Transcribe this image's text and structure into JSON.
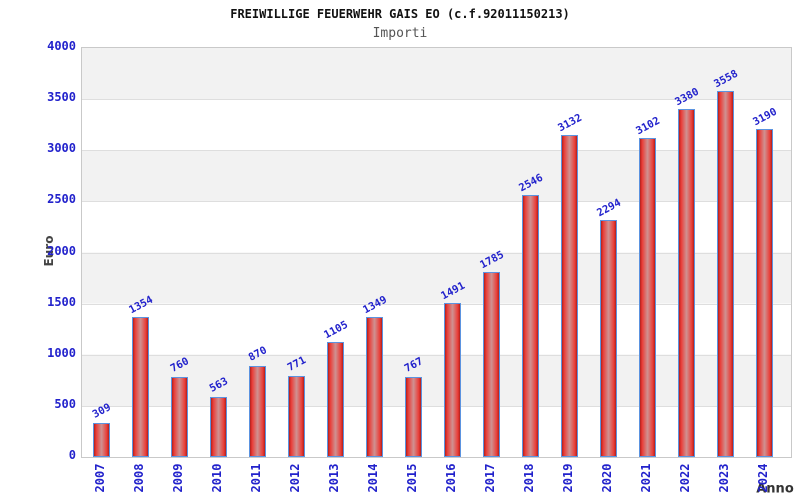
{
  "chart_data": {
    "type": "bar",
    "title": "FREIWILLIGE FEUERWEHR GAIS EO (c.f.92011150213)",
    "subtitle": "Importi",
    "xlabel": "Anno",
    "ylabel": "Euro",
    "categories": [
      "2007",
      "2008",
      "2009",
      "2010",
      "2011",
      "2012",
      "2013",
      "2014",
      "2015",
      "2016",
      "2017",
      "2018",
      "2019",
      "2020",
      "2021",
      "2022",
      "2023",
      "2024"
    ],
    "values": [
      309,
      1354,
      760,
      563,
      870,
      771,
      1105,
      1349,
      767,
      1491,
      1785,
      2546,
      3132,
      2294,
      3102,
      3380,
      3558,
      3190
    ],
    "ylim": [
      0,
      4000
    ],
    "ytick_step": 500,
    "grid": true,
    "legend": "none",
    "colors": {
      "bar_fill": "#ea3b36",
      "bar_fill_edge": "#b0201c",
      "bar_fill_center": "#cf9292",
      "bar_border": "#5b93e0",
      "tick_label": "#2222cc",
      "band_gray": "#f2f2f2",
      "band_white": "#ffffff",
      "gridline": "#dedede",
      "title_color": "#111111",
      "subtitle_color": "#555555",
      "axis_label_color": "#444444"
    }
  }
}
